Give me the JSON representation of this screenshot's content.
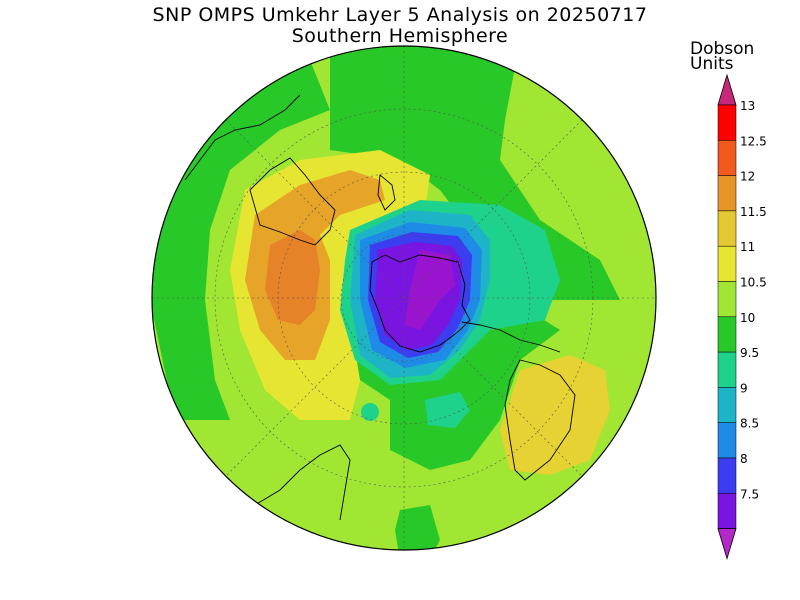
{
  "title": "SNP OMPS Umkehr Layer 5 Analysis on 20250717",
  "subtitle": "Southern Hemisphere",
  "colorbar": {
    "title_line1": "Dobson",
    "title_line2": "Units",
    "ticks": [
      "13",
      "12.5",
      "12",
      "11.5",
      "11",
      "10.5",
      "10",
      "9.5",
      "9",
      "8.5",
      "8",
      "7.5"
    ],
    "colors": [
      "#ff0000",
      "#f05a1e",
      "#e69628",
      "#e6c832",
      "#e6e632",
      "#a0e632",
      "#28c828",
      "#1ed28c",
      "#1eb4c8",
      "#1e8ce6",
      "#3c3cf0",
      "#7a14e0"
    ],
    "arrow_top_color": "#c8287a",
    "arrow_bottom_color": "#b428c8"
  },
  "map_colors": {
    "green": "#28c828",
    "light_green": "#a0e632",
    "yellow": "#e6e632",
    "yellow_orange": "#e6c832",
    "orange_light": "#e6a528",
    "orange": "#e68228",
    "teal": "#1ed28c",
    "cyan": "#1eb4c8",
    "blue": "#1e8ce6",
    "dark_blue": "#3c3cf0",
    "purple": "#7a14e0",
    "violet": "#9a14d0"
  }
}
